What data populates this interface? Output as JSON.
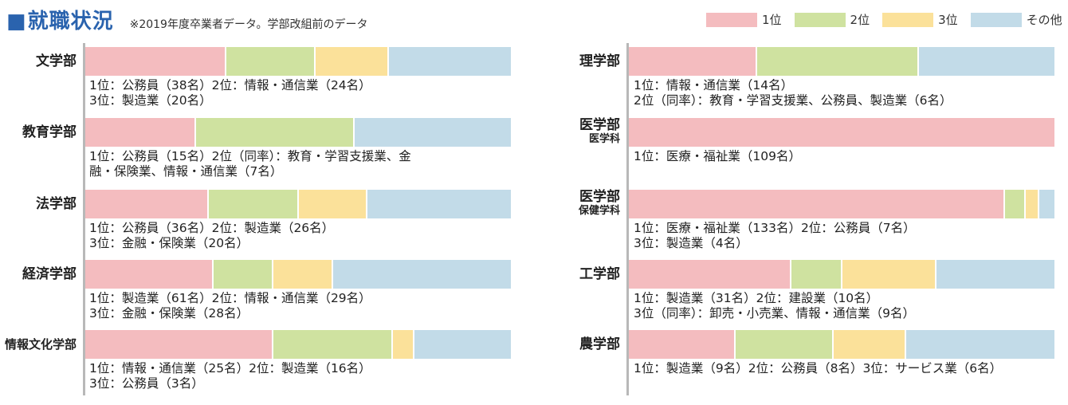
{
  "header": {
    "title": "就職状況",
    "subtitle": "※2019年度卒業者データ。学部改組前のデータ"
  },
  "legend": [
    {
      "label": "1位",
      "color": "#f4bcbf"
    },
    {
      "label": "2位",
      "color": "#cfe2a0"
    },
    {
      "label": "3位",
      "color": "#fbe19a"
    },
    {
      "label": "その他",
      "color": "#c2dbe8"
    }
  ],
  "chart_data": {
    "type": "bar",
    "orientation": "horizontal",
    "stacked": true,
    "value_unit": "share of graduates (%)",
    "series_names": [
      "1位",
      "2位",
      "3位",
      "その他"
    ],
    "series_colors": [
      "#f4bcbf",
      "#cfe2a0",
      "#fbe19a",
      "#c2dbe8"
    ],
    "rows": [
      {
        "label": "文学部",
        "sublabel": "",
        "values": [
          33,
          21,
          17,
          29
        ],
        "note": "1位：公務員（38名）2位：情報・通信業（24名）\n3位：製造業（20名）"
      },
      {
        "label": "教育学部",
        "sublabel": "",
        "values": [
          26,
          37,
          0,
          37
        ],
        "note": "1位：公務員（15名）2位（同率）：教育・学習支援業、金\n融・保険業、情報・通信業（7名）"
      },
      {
        "label": "法学部",
        "sublabel": "",
        "values": [
          29,
          21,
          16,
          34
        ],
        "note": "1位：公務員（36名）2位：製造業（26名）\n3位：金融・保険業（20名）"
      },
      {
        "label": "経済学部",
        "sublabel": "",
        "values": [
          30,
          14,
          14,
          42
        ],
        "note": "1位：製造業（61名）2位：情報・通信業（29名）\n3位：金融・保険業（28名）"
      },
      {
        "label": "情報文化学部",
        "sublabel": "",
        "values": [
          44,
          28,
          5,
          23
        ],
        "note": "1位：情報・通信業（25名）2位：製造業（16名）\n3位：公務員（3名）"
      },
      {
        "label": "理学部",
        "sublabel": "",
        "values": [
          30,
          38,
          0,
          32
        ],
        "note": "1位：情報・通信業（14名）\n2位（同率）：教育・学習支援業、公務員、製造業（6名）"
      },
      {
        "label": "医学部",
        "sublabel": "医学科",
        "values": [
          100,
          0,
          0,
          0
        ],
        "note": "1位：医療・福祉業（109名）"
      },
      {
        "label": "医学部",
        "sublabel": "保健学科",
        "values": [
          88,
          5,
          3,
          4
        ],
        "note": "1位：医療・福祉業（133名）2位：公務員（7名）\n3位：製造業（4名）"
      },
      {
        "label": "工学部",
        "sublabel": "",
        "values": [
          38,
          12,
          22,
          28
        ],
        "note": "1位：製造業（31名）2位：建設業（10名）\n3位（同率）：卸売・小売業、情報・通信業（9名）"
      },
      {
        "label": "農学部",
        "sublabel": "",
        "values": [
          25,
          23,
          17,
          35
        ],
        "note": "1位：製造業（9名）2位：公務員（8名）3位：サービス業（6名）"
      }
    ]
  }
}
